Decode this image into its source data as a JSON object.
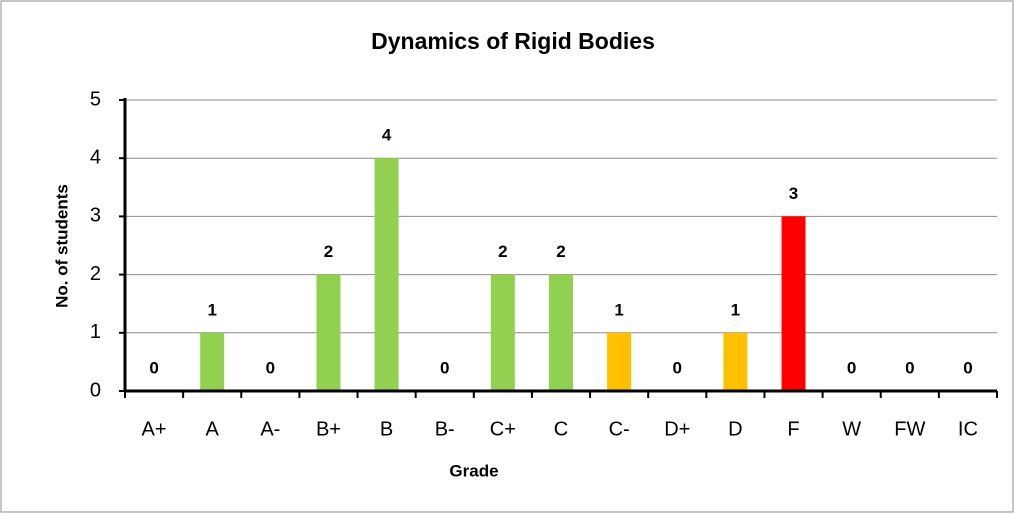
{
  "chart_data": {
    "type": "bar",
    "title": "Dynamics of Rigid Bodies",
    "x_label": "Grade",
    "y_label": "No. of students",
    "categories": [
      "A+",
      "A",
      "A-",
      "B+",
      "B",
      "B-",
      "C+",
      "C",
      "C-",
      "D+",
      "D",
      "F",
      "W",
      "FW",
      "IC"
    ],
    "values": [
      0,
      1,
      0,
      2,
      4,
      0,
      2,
      2,
      1,
      0,
      1,
      3,
      0,
      0,
      0
    ],
    "colors": [
      "#92d050",
      "#92d050",
      "#92d050",
      "#92d050",
      "#92d050",
      "#92d050",
      "#92d050",
      "#92d050",
      "#ffc000",
      "#ffc000",
      "#ffc000",
      "#ff0000",
      "#ff0000",
      "#ff0000",
      "#ff0000"
    ],
    "ylim": [
      0,
      5
    ],
    "yticks": [
      0,
      1,
      2,
      3,
      4,
      5
    ],
    "grid": true
  }
}
